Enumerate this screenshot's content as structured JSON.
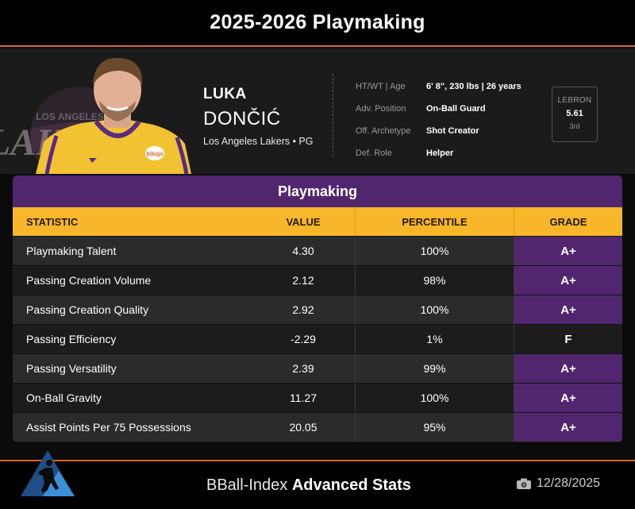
{
  "header": {
    "title": "2025-2026 Playmaking"
  },
  "player": {
    "first_name": "LUKA",
    "last_name": "DONČIĆ",
    "team_position": "Los Angeles Lakers • PG",
    "jersey_sponsor": "bibigo"
  },
  "team_logo": {
    "line1": "LOS ANGELES",
    "line2": "LAKERS"
  },
  "info": [
    {
      "label": "HT/WT | Age",
      "value": "6' 8\", 230 lbs | 26 years"
    },
    {
      "label": "Adv. Position",
      "value": "On-Ball Guard"
    },
    {
      "label": "Off. Archetype",
      "value": "Shot Creator"
    },
    {
      "label": "Def. Role",
      "value": "Helper"
    }
  ],
  "lebron": {
    "label": "LEBRON",
    "value": "5.61",
    "rank": "3rd"
  },
  "table": {
    "title": "Playmaking",
    "columns": [
      "STATISTIC",
      "VALUE",
      "PERCENTILE",
      "GRADE"
    ],
    "rows": [
      {
        "statistic": "Playmaking Talent",
        "value": "4.30",
        "percentile": "100%",
        "grade": "A+"
      },
      {
        "statistic": "Passing Creation Volume",
        "value": "2.12",
        "percentile": "98%",
        "grade": "A+"
      },
      {
        "statistic": "Passing Creation Quality",
        "value": "2.92",
        "percentile": "100%",
        "grade": "A+"
      },
      {
        "statistic": "Passing Efficiency",
        "value": "-2.29",
        "percentile": "1%",
        "grade": "F"
      },
      {
        "statistic": "Passing Versatility",
        "value": "2.39",
        "percentile": "99%",
        "grade": "A+"
      },
      {
        "statistic": "On-Ball Gravity",
        "value": "11.27",
        "percentile": "100%",
        "grade": "A+"
      },
      {
        "statistic": "Assist Points Per 75 Possessions",
        "value": "20.05",
        "percentile": "95%",
        "grade": "A+"
      }
    ]
  },
  "footer": {
    "brand_regular": "BBall-Index",
    "brand_bold": "Advanced Stats",
    "date": "12/28/2025"
  },
  "colors": {
    "accent_orange": "#e0602a",
    "lakers_purple": "#52266f",
    "lakers_gold": "#f8b72a",
    "logo_blue": "#3a8fd6"
  }
}
